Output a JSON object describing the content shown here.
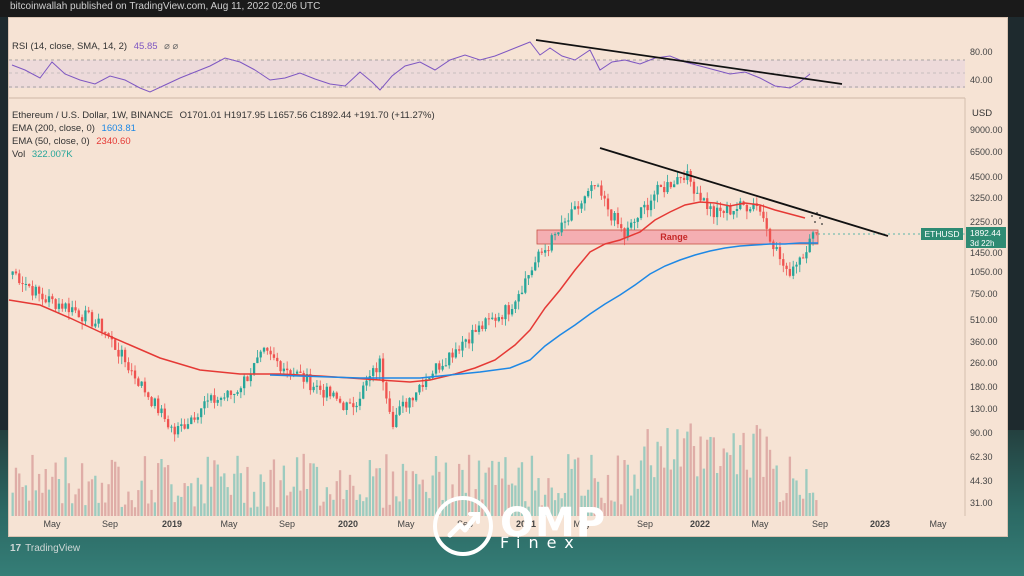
{
  "header": {
    "published": "bitcoinwallah published on TradingView.com, Aug 11, 2022 02:06 UTC"
  },
  "rsi": {
    "label": "RSI (14, close, SMA, 14, 2)",
    "value": "45.85",
    "symbols": "⌀ ⌀",
    "ticks": [
      "80.00",
      "40.00"
    ]
  },
  "legend": {
    "title": "Ethereum / U.S. Dollar, 1W, BINANCE",
    "ohlc": "O1701.01 H1917.95 L1657.56 C1892.44 +191.70 (+11.27%)",
    "ema200_label": "EMA (200, close, 0)",
    "ema200_value": "1603.81",
    "ema50_label": "EMA (50, close, 0)",
    "ema50_value": "2340.60",
    "vol_label": "Vol",
    "vol_value": "322.007K"
  },
  "price_axis": {
    "unit": "USD",
    "ticks": [
      "9000.00",
      "6500.00",
      "4500.00",
      "3250.00",
      "2250.00",
      "1450.00",
      "1050.00",
      "750.00",
      "510.00",
      "360.00",
      "260.00",
      "180.00",
      "130.00",
      "90.00",
      "62.30",
      "44.30",
      "31.00"
    ]
  },
  "time_axis": {
    "ticks": [
      "May",
      "Sep",
      "2019",
      "May",
      "Sep",
      "2020",
      "May",
      "Sep",
      "2021",
      "May",
      "Sep",
      "2022",
      "May",
      "Sep",
      "2023",
      "May"
    ]
  },
  "range_label": "Range",
  "price_tag": {
    "symbol": "ETHUSD",
    "price": "1892.44",
    "countdown": "3d 22h"
  },
  "footer": {
    "brand": "TradingView"
  },
  "watermark": {
    "brand": "OMP",
    "sub": "Finex"
  },
  "colors": {
    "up": "#26a69a",
    "down": "#ef5350",
    "ema50": "#e53935",
    "ema200": "#1e88e5",
    "rsi": "#7e57c2"
  },
  "chart_data": {
    "type": "candlestick",
    "symbol": "ETHUSD",
    "interval": "1W",
    "scale": "log",
    "ylim": [
      31,
      9000
    ],
    "close_series": [
      {
        "t": "2018-01",
        "v": 1050
      },
      {
        "t": "2018-03",
        "v": 700
      },
      {
        "t": "2018-05",
        "v": 600
      },
      {
        "t": "2018-07",
        "v": 450
      },
      {
        "t": "2018-09",
        "v": 230
      },
      {
        "t": "2018-12",
        "v": 90
      },
      {
        "t": "2019-02",
        "v": 140
      },
      {
        "t": "2019-04",
        "v": 165
      },
      {
        "t": "2019-06",
        "v": 300
      },
      {
        "t": "2019-09",
        "v": 200
      },
      {
        "t": "2019-12",
        "v": 130
      },
      {
        "t": "2020-02",
        "v": 260
      },
      {
        "t": "2020-03",
        "v": 110
      },
      {
        "t": "2020-05",
        "v": 200
      },
      {
        "t": "2020-08",
        "v": 380
      },
      {
        "t": "2020-11",
        "v": 600
      },
      {
        "t": "2021-01",
        "v": 1300
      },
      {
        "t": "2021-05",
        "v": 3800
      },
      {
        "t": "2021-07",
        "v": 1800
      },
      {
        "t": "2021-09",
        "v": 3400
      },
      {
        "t": "2021-11",
        "v": 4700
      },
      {
        "t": "2022-01",
        "v": 2500
      },
      {
        "t": "2022-04",
        "v": 3000
      },
      {
        "t": "2022-06",
        "v": 1000
      },
      {
        "t": "2022-08",
        "v": 1892
      }
    ],
    "ema50": [
      {
        "t": "2018-01",
        "v": 780
      },
      {
        "t": "2019-01",
        "v": 250
      },
      {
        "t": "2020-01",
        "v": 210
      },
      {
        "t": "2020-09",
        "v": 240
      },
      {
        "t": "2021-01",
        "v": 500
      },
      {
        "t": "2021-06",
        "v": 1600
      },
      {
        "t": "2021-11",
        "v": 2800
      },
      {
        "t": "2022-05",
        "v": 2500
      },
      {
        "t": "2022-08",
        "v": 2340.6
      }
    ],
    "ema200": [
      {
        "t": "2019-06",
        "v": 210
      },
      {
        "t": "2020-03",
        "v": 200
      },
      {
        "t": "2020-09",
        "v": 215
      },
      {
        "t": "2021-03",
        "v": 450
      },
      {
        "t": "2021-09",
        "v": 1100
      },
      {
        "t": "2022-03",
        "v": 1550
      },
      {
        "t": "2022-08",
        "v": 1603.81
      }
    ],
    "range_zone": [
      1600,
      2000
    ],
    "trendline_price": {
      "from": {
        "t": "2021-05",
        "v": 6500
      },
      "to": {
        "t": "2022-12",
        "v": 1900
      }
    },
    "rsi_values": [
      {
        "t": "2018-01",
        "v": 62
      },
      {
        "t": "2018-09",
        "v": 45
      },
      {
        "t": "2019-06",
        "v": 64
      },
      {
        "t": "2020-03",
        "v": 40
      },
      {
        "t": "2021-05",
        "v": 90
      },
      {
        "t": "2021-11",
        "v": 70
      },
      {
        "t": "2022-06",
        "v": 30
      },
      {
        "t": "2022-08",
        "v": 45.85
      }
    ]
  }
}
